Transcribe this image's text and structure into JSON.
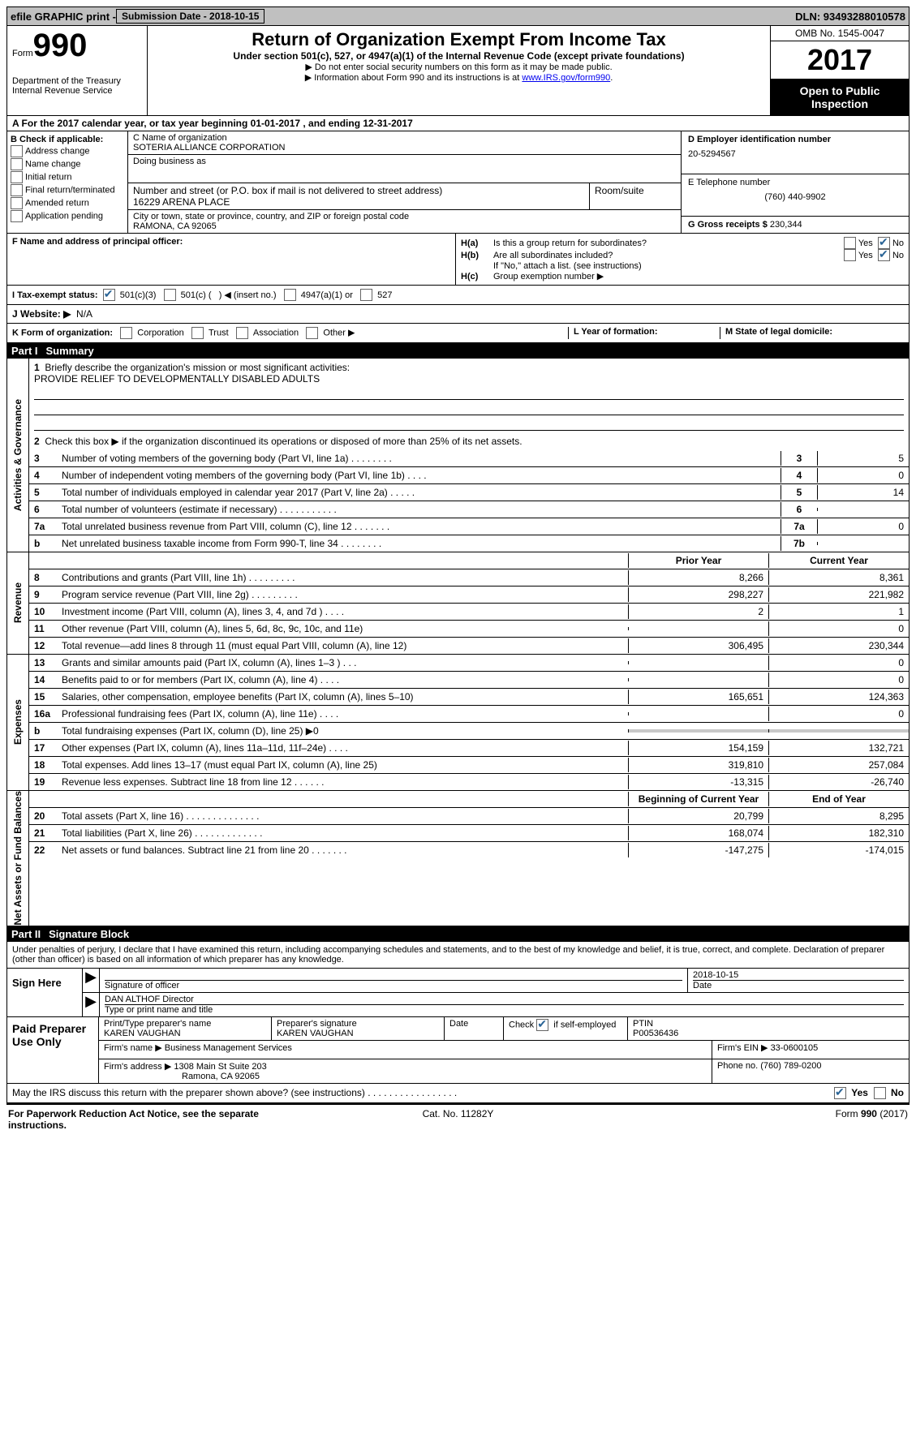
{
  "topbar": {
    "efile": "efile GRAPHIC print - ",
    "submission": "Submission Date - 2018-10-15",
    "dln": "DLN: 93493288010578"
  },
  "header": {
    "form_label": "Form",
    "form_num": "990",
    "dept1": "Department of the Treasury",
    "dept2": "Internal Revenue Service",
    "title": "Return of Organization Exempt From Income Tax",
    "sub": "Under section 501(c), 527, or 4947(a)(1) of the Internal Revenue Code (except private foundations)",
    "note1": "▶ Do not enter social security numbers on this form as it may be made public.",
    "note2_a": "▶ Information about Form 990 and its instructions is at ",
    "note2_link": "www.IRS.gov/form990",
    "omb": "OMB No. 1545-0047",
    "year": "2017",
    "inspect": "Open to Public Inspection"
  },
  "A": {
    "text": "A  For the 2017 calendar year, or tax year beginning 01-01-2017   , and ending 12-31-2017"
  },
  "B": {
    "label": "B Check if applicable:",
    "opts": [
      "Address change",
      "Name change",
      "Initial return",
      "Final return/terminated",
      "Amended return",
      "Application pending"
    ]
  },
  "C": {
    "name_label": "C Name of organization",
    "name": "SOTERIA ALLIANCE CORPORATION",
    "dba_label": "Doing business as",
    "addr_label": "Number and street (or P.O. box if mail is not delivered to street address)",
    "room_label": "Room/suite",
    "addr": "16229 ARENA PLACE",
    "city_label": "City or town, state or province, country, and ZIP or foreign postal code",
    "city": "RAMONA, CA  92065"
  },
  "D": {
    "label": "D Employer identification number",
    "val": "20-5294567"
  },
  "E": {
    "label": "E Telephone number",
    "val": "(760) 440-9902"
  },
  "G": {
    "label": "G Gross receipts $",
    "val": "230,344"
  },
  "F": {
    "label": "F Name and address of principal officer:"
  },
  "H": {
    "a": "Is this a group return for subordinates?",
    "b": "Are all subordinates included?",
    "b_note": "If \"No,\" attach a list. (see instructions)",
    "c": "Group exemption number ▶",
    "yes": "Yes",
    "no": "No"
  },
  "I": {
    "label": "I  Tax-exempt status:",
    "o1": "501(c)(3)",
    "o2_a": "501(c) (",
    "o2_b": ") ◀ (insert no.)",
    "o3": "4947(a)(1) or",
    "o4": "527"
  },
  "J": {
    "label": "J  Website: ▶",
    "val": "N/A"
  },
  "K": {
    "label": "K Form of organization:",
    "opts": [
      "Corporation",
      "Trust",
      "Association",
      "Other ▶"
    ],
    "L": "L Year of formation:",
    "M": "M State of legal domicile:"
  },
  "part1": {
    "title": "Part I",
    "name": "Summary"
  },
  "ag": {
    "tab": "Activities & Governance",
    "l1": "Briefly describe the organization's mission or most significant activities:",
    "mission": "PROVIDE RELIEF TO DEVELOPMENTALLY DISABLED ADULTS",
    "l2": "Check this box ▶  if the organization discontinued its operations or disposed of more than 25% of its net assets.",
    "rows": [
      {
        "n": "3",
        "d": "Number of voting members of the governing body (Part VI, line 1a)   .    .    .    .    .    .    .    .",
        "b": "3",
        "v": "5"
      },
      {
        "n": "4",
        "d": "Number of independent voting members of the governing body (Part VI, line 1b)    .    .    .    .",
        "b": "4",
        "v": "0"
      },
      {
        "n": "5",
        "d": "Total number of individuals employed in calendar year 2017 (Part V, line 2a)    .    .    .    .    .",
        "b": "5",
        "v": "14"
      },
      {
        "n": "6",
        "d": "Total number of volunteers (estimate if necessary)    .    .    .    .    .    .    .    .    .    .    .",
        "b": "6",
        "v": ""
      },
      {
        "n": "7a",
        "d": "Total unrelated business revenue from Part VIII, column (C), line 12    .    .    .    .    .    .    .",
        "b": "7a",
        "v": "0"
      },
      {
        "n": "b",
        "d": "Net unrelated business taxable income from Form 990-T, line 34    .    .    .    .    .    .    .    .",
        "b": "7b",
        "v": ""
      }
    ]
  },
  "rev": {
    "tab": "Revenue",
    "py": "Prior Year",
    "cy": "Current Year",
    "rows": [
      {
        "n": "8",
        "d": "Contributions and grants (Part VIII, line 1h)    .    .    .    .    .    .    .    .    .",
        "py": "8,266",
        "cy": "8,361"
      },
      {
        "n": "9",
        "d": "Program service revenue (Part VIII, line 2g)    .    .    .    .    .    .    .    .    .",
        "py": "298,227",
        "cy": "221,982"
      },
      {
        "n": "10",
        "d": "Investment income (Part VIII, column (A), lines 3, 4, and 7d )    .    .    .    .",
        "py": "2",
        "cy": "1"
      },
      {
        "n": "11",
        "d": "Other revenue (Part VIII, column (A), lines 5, 6d, 8c, 9c, 10c, and 11e)",
        "py": "",
        "cy": "0"
      },
      {
        "n": "12",
        "d": "Total revenue—add lines 8 through 11 (must equal Part VIII, column (A), line 12)",
        "py": "306,495",
        "cy": "230,344"
      }
    ]
  },
  "exp": {
    "tab": "Expenses",
    "rows": [
      {
        "n": "13",
        "d": "Grants and similar amounts paid (Part IX, column (A), lines 1–3 )    .    .    .",
        "py": "",
        "cy": "0"
      },
      {
        "n": "14",
        "d": "Benefits paid to or for members (Part IX, column (A), line 4)    .    .    .    .",
        "py": "",
        "cy": "0"
      },
      {
        "n": "15",
        "d": "Salaries, other compensation, employee benefits (Part IX, column (A), lines 5–10)",
        "py": "165,651",
        "cy": "124,363"
      },
      {
        "n": "16a",
        "d": "Professional fundraising fees (Part IX, column (A), line 11e)    .    .    .    .",
        "py": "",
        "cy": "0"
      },
      {
        "n": "b",
        "d": "Total fundraising expenses (Part IX, column (D), line 25) ▶0",
        "py": "SHADE",
        "cy": "SHADE"
      },
      {
        "n": "17",
        "d": "Other expenses (Part IX, column (A), lines 11a–11d, 11f–24e)    .    .    .    .",
        "py": "154,159",
        "cy": "132,721"
      },
      {
        "n": "18",
        "d": "Total expenses. Add lines 13–17 (must equal Part IX, column (A), line 25)",
        "py": "319,810",
        "cy": "257,084"
      },
      {
        "n": "19",
        "d": "Revenue less expenses. Subtract line 18 from line 12    .    .    .    .    .    .",
        "py": "-13,315",
        "cy": "-26,740"
      }
    ]
  },
  "na": {
    "tab": "Net Assets or Fund Balances",
    "py": "Beginning of Current Year",
    "cy": "End of Year",
    "rows": [
      {
        "n": "20",
        "d": "Total assets (Part X, line 16)    .    .    .    .    .    .    .    .    .    .    .    .    .    .",
        "py": "20,799",
        "cy": "8,295"
      },
      {
        "n": "21",
        "d": "Total liabilities (Part X, line 26)    .    .    .    .    .    .    .    .    .    .    .    .    .",
        "py": "168,074",
        "cy": "182,310"
      },
      {
        "n": "22",
        "d": "Net assets or fund balances. Subtract line 21 from line 20 .    .    .    .    .    .    .",
        "py": "-147,275",
        "cy": "-174,015"
      }
    ]
  },
  "part2": {
    "title": "Part II",
    "name": "Signature Block"
  },
  "penalty": "Under penalties of perjury, I declare that I have examined this return, including accompanying schedules and statements, and to the best of my knowledge and belief, it is true, correct, and complete. Declaration of preparer (other than officer) is based on all information of which preparer has any knowledge.",
  "sign": {
    "here": "Sign Here",
    "sig_label": "Signature of officer",
    "date": "2018-10-15",
    "date_label": "Date",
    "name": "DAN ALTHOF Director",
    "name_label": "Type or print name and title"
  },
  "prep": {
    "label": "Paid Preparer Use Only",
    "r1": {
      "c1l": "Print/Type preparer's name",
      "c1v": "KAREN VAUGHAN",
      "c2l": "Preparer's signature",
      "c2v": "KAREN VAUGHAN",
      "c3l": "Date",
      "c4": "Check  if self-employed",
      "c5l": "PTIN",
      "c5v": "P00536436"
    },
    "r2": {
      "l": "Firm's name    ▶",
      "v": "Business Management Services",
      "einl": "Firm's EIN ▶",
      "einv": "33-0600105"
    },
    "r3": {
      "l": "Firm's address ▶",
      "v1": "1308 Main St Suite 203",
      "v2": "Ramona, CA 92065",
      "phl": "Phone no.",
      "phv": "(760) 789-0200"
    }
  },
  "discuss": {
    "q": "May the IRS discuss this return with the preparer shown above? (see instructions)    .    .    .    .    .    .    .    .    .    .    .    .    .    .    .    .    .",
    "yes": "Yes",
    "no": "No"
  },
  "footer": {
    "l": "For Paperwork Reduction Act Notice, see the separate instructions.",
    "m": "Cat. No. 11282Y",
    "r": "Form 990 (2017)"
  }
}
